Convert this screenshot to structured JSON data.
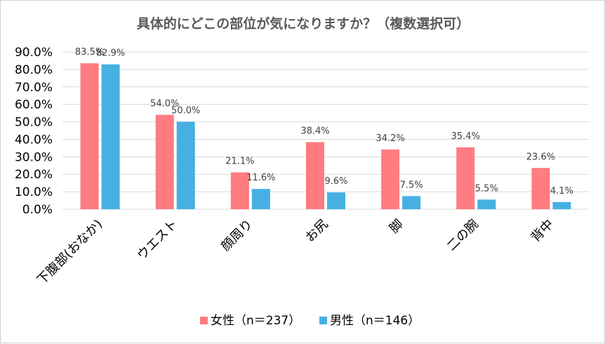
{
  "chart_data": {
    "type": "bar",
    "title": "具体的にどこの部位が気になりますか？（複数選択可）",
    "categories": [
      "下腹部(おなか)",
      "ウエスト",
      "顔周り",
      "お尻",
      "脚",
      "二の腕",
      "背中"
    ],
    "series": [
      {
        "name": "女性（n＝237）",
        "color": "#ff7c80",
        "values": [
          83.5,
          54.0,
          21.1,
          38.4,
          34.2,
          35.4,
          23.6
        ],
        "labels": [
          "83.5%",
          "54.0%",
          "21.1%",
          "38.4%",
          "34.2%",
          "35.4%",
          "23.6%"
        ]
      },
      {
        "name": "男性（n＝146）",
        "color": "#45b0e1",
        "values": [
          82.9,
          50.0,
          11.6,
          9.6,
          7.5,
          5.5,
          4.1
        ],
        "labels": [
          "82.9%",
          "50.0%",
          "11.6%",
          "9.6%",
          "7.5%",
          "5.5%",
          "4.1%"
        ]
      }
    ],
    "yticks": [
      0,
      10,
      20,
      30,
      40,
      50,
      60,
      70,
      80,
      90
    ],
    "ytick_labels": [
      "0.0%",
      "10.0%",
      "20.0%",
      "30.0%",
      "40.0%",
      "50.0%",
      "60.0%",
      "70.0%",
      "80.0%",
      "90.0%"
    ],
    "ylim": [
      0,
      90
    ],
    "grid": true,
    "legend_position": "bottom"
  }
}
